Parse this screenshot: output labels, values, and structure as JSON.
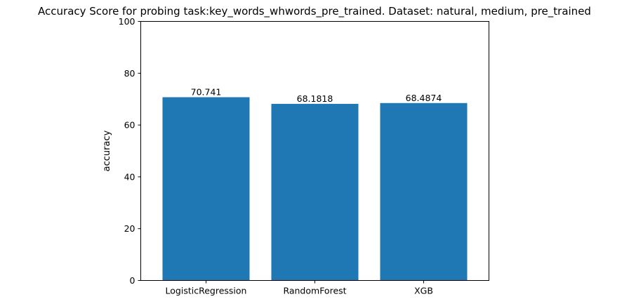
{
  "chart_data": {
    "type": "bar",
    "title": "Accuracy Score for probing task:key_words_whwords_pre_trained. Dataset: natural, medium, pre_trained",
    "xlabel": "",
    "ylabel": "accuracy",
    "categories": [
      "LogisticRegression",
      "RandomForest",
      "XGB"
    ],
    "values": [
      70.741,
      68.1818,
      68.4874
    ],
    "value_labels": [
      "70.741",
      "68.1818",
      "68.4874"
    ],
    "ylim": [
      0,
      100
    ],
    "yticks": [
      0,
      20,
      40,
      60,
      80,
      100
    ],
    "bar_color": "#1f77b4",
    "grid": false,
    "legend": "none"
  }
}
